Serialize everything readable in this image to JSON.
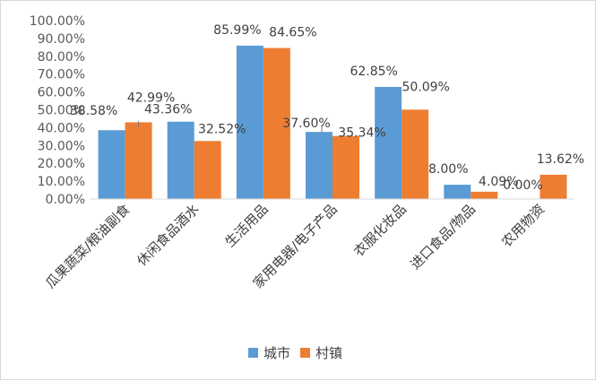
{
  "chart_data": {
    "type": "bar",
    "categories": [
      "瓜果蔬菜/粮油副食",
      "休闲食品酒水",
      "生活用品",
      "家用电器/电子产品",
      "衣服化妆品",
      "进口食品/物品",
      "农用物资"
    ],
    "series": [
      {
        "name": "城市",
        "color": "#5b9bd5",
        "values": [
          38.58,
          43.36,
          85.99,
          37.6,
          62.85,
          8.0,
          0.0
        ],
        "labels": [
          "38.58%",
          "43.36%",
          "85.99%",
          "37.60%",
          "62.85%",
          "8.00%",
          "0.00%"
        ]
      },
      {
        "name": "村镇",
        "color": "#ed7d31",
        "values": [
          42.99,
          32.52,
          84.65,
          35.34,
          50.09,
          4.09,
          13.62
        ],
        "labels": [
          "42.99%",
          "32.52%",
          "84.65%",
          "35.34%",
          "50.09%",
          "4.09%",
          "13.62%"
        ]
      }
    ],
    "y_ticks": [
      "0.00%",
      "10.00%",
      "20.00%",
      "30.00%",
      "40.00%",
      "50.00%",
      "60.00%",
      "70.00%",
      "80.00%",
      "90.00%",
      "100.00%"
    ],
    "ylim": [
      0,
      100
    ],
    "grid": false,
    "legend_position": "bottom"
  }
}
